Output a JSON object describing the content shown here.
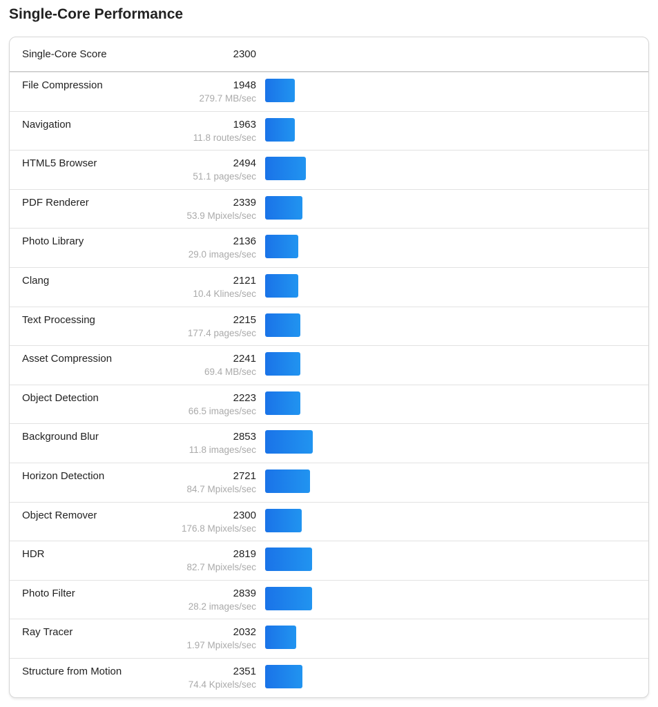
{
  "title": "Single-Core Performance",
  "bar_color": "#1a73e8",
  "summary": {
    "label": "Single-Core Score",
    "score": "2300"
  },
  "rows": [
    {
      "name": "File Compression",
      "score": "1948",
      "desc": "279.7 MB/sec"
    },
    {
      "name": "Navigation",
      "score": "1963",
      "desc": "11.8 routes/sec"
    },
    {
      "name": "HTML5 Browser",
      "score": "2494",
      "desc": "51.1 pages/sec"
    },
    {
      "name": "PDF Renderer",
      "score": "2339",
      "desc": "53.9 Mpixels/sec"
    },
    {
      "name": "Photo Library",
      "score": "2136",
      "desc": "29.0 images/sec"
    },
    {
      "name": "Clang",
      "score": "2121",
      "desc": "10.4 Klines/sec"
    },
    {
      "name": "Text Processing",
      "score": "2215",
      "desc": "177.4 pages/sec"
    },
    {
      "name": "Asset Compression",
      "score": "2241",
      "desc": "69.4 MB/sec"
    },
    {
      "name": "Object Detection",
      "score": "2223",
      "desc": "66.5 images/sec"
    },
    {
      "name": "Background Blur",
      "score": "2853",
      "desc": "11.8 images/sec"
    },
    {
      "name": "Horizon Detection",
      "score": "2721",
      "desc": "84.7 Mpixels/sec"
    },
    {
      "name": "Object Remover",
      "score": "2300",
      "desc": "176.8 Mpixels/sec"
    },
    {
      "name": "HDR",
      "score": "2819",
      "desc": "82.7 Mpixels/sec"
    },
    {
      "name": "Photo Filter",
      "score": "2839",
      "desc": "28.2 images/sec"
    },
    {
      "name": "Ray Tracer",
      "score": "2032",
      "desc": "1.97 Mpixels/sec"
    },
    {
      "name": "Structure from Motion",
      "score": "2351",
      "desc": "74.4 Kpixels/sec"
    }
  ]
}
